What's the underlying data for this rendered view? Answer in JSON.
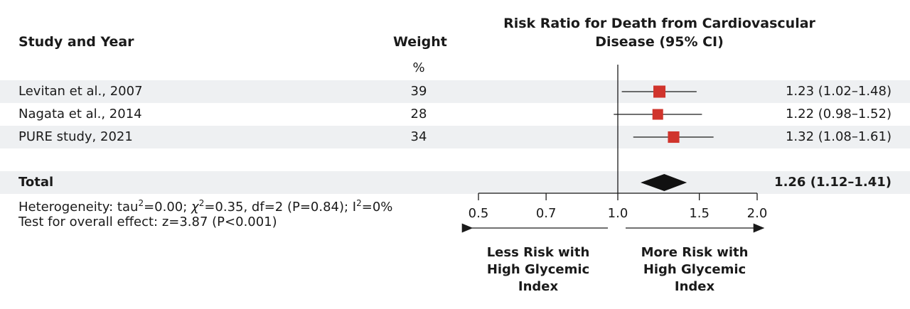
{
  "headers": {
    "study": "Study and Year",
    "weight": "Weight",
    "weight_unit": "%",
    "effect_line1": "Risk Ratio for Death from Cardiovascular",
    "effect_line2": "Disease (95% CI)"
  },
  "rows": [
    {
      "study": "Levitan et al., 2007",
      "weight": "39",
      "ci_text": "1.23 (1.02–1.48)"
    },
    {
      "study": "Nagata et al., 2014",
      "weight": "28",
      "ci_text": "1.22 (0.98–1.52)"
    },
    {
      "study": "PURE study, 2021",
      "weight": "34",
      "ci_text": "1.32 (1.08–1.61)"
    }
  ],
  "total": {
    "label": "Total",
    "ci_text": "1.26 (1.12–1.41)"
  },
  "stats": {
    "heterogeneity_pre": "Heterogeneity: tau",
    "sup2": "2",
    "heterogeneity_mid1": "=0.00; ",
    "chi": "χ",
    "heterogeneity_mid2": "=0.35, df=2 (P=0.84); I",
    "heterogeneity_post": "=0%",
    "overall": "Test for overall effect: z=3.87 (P<0.001)"
  },
  "direction": {
    "left": "Less Risk with High Glycemic Index",
    "right": "More Risk with High Glycemic Index"
  },
  "colors": {
    "marker": "#d0342c",
    "diamond": "#111111",
    "line": "#1a1a1a",
    "stripe": "#eef0f2"
  },
  "chart_data": {
    "type": "forest",
    "scale": "log",
    "xlim": [
      0.5,
      2.0
    ],
    "ticks": [
      0.5,
      0.7,
      1.0,
      1.5,
      2.0
    ],
    "tick_labels": [
      "0.5",
      "0.7",
      "1.0",
      "1.5",
      "2.0"
    ],
    "null_value": 1.0,
    "studies": [
      {
        "name": "Levitan et al., 2007",
        "rr": 1.23,
        "lo": 1.02,
        "hi": 1.48,
        "weight": 39
      },
      {
        "name": "Nagata et al., 2014",
        "rr": 1.22,
        "lo": 0.98,
        "hi": 1.52,
        "weight": 28
      },
      {
        "name": "PURE study, 2021",
        "rr": 1.32,
        "lo": 1.08,
        "hi": 1.61,
        "weight": 34
      }
    ],
    "pooled": {
      "name": "Total",
      "rr": 1.26,
      "lo": 1.12,
      "hi": 1.41
    }
  }
}
